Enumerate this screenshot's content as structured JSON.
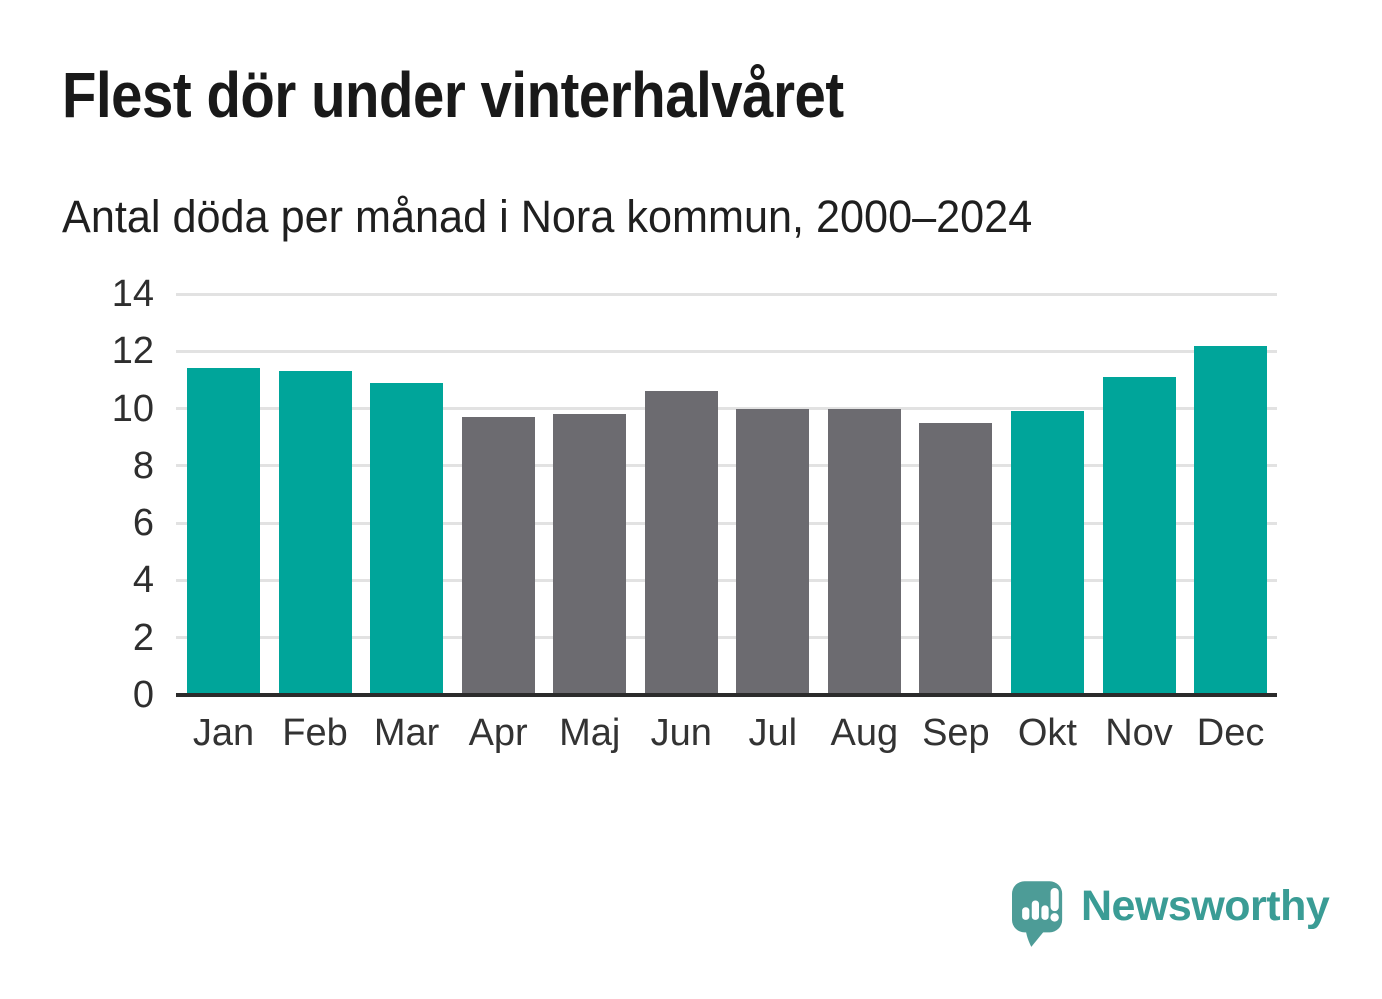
{
  "header": {
    "title": "Flest dör under vinterhalvåret",
    "subtitle": "Antal döda per månad i Nora kommun, 2000–2024"
  },
  "chart_data": {
    "type": "bar",
    "title": "Flest dör under vinterhalvåret",
    "subtitle": "Antal döda per månad i Nora kommun, 2000–2024",
    "categories": [
      "Jan",
      "Feb",
      "Mar",
      "Apr",
      "Maj",
      "Jun",
      "Jul",
      "Aug",
      "Sep",
      "Okt",
      "Nov",
      "Dec"
    ],
    "values": [
      11.4,
      11.3,
      10.9,
      9.7,
      9.8,
      10.6,
      10.0,
      10.0,
      9.5,
      9.9,
      11.1,
      12.2
    ],
    "bar_groups": [
      "winter",
      "winter",
      "winter",
      "summer",
      "summer",
      "summer",
      "summer",
      "summer",
      "summer",
      "winter",
      "winter",
      "winter"
    ],
    "group_colors": {
      "winter": "#00a59a",
      "summer": "#6c6b70"
    },
    "xlabel": "",
    "ylabel": "",
    "ylim": [
      0,
      14
    ],
    "yticks": [
      0,
      2,
      4,
      6,
      8,
      10,
      12,
      14
    ],
    "grid": true,
    "legend_position": "none",
    "gridline_color": "#e2e2e2",
    "axis_color": "#2b2b2b"
  },
  "footer": {
    "brand": "Newsworthy",
    "brand_color": "#3a9c95",
    "brand_icon": "newsworthy-speech-bubble-barchart-icon",
    "brand_icon_color": "#4d9c97"
  }
}
